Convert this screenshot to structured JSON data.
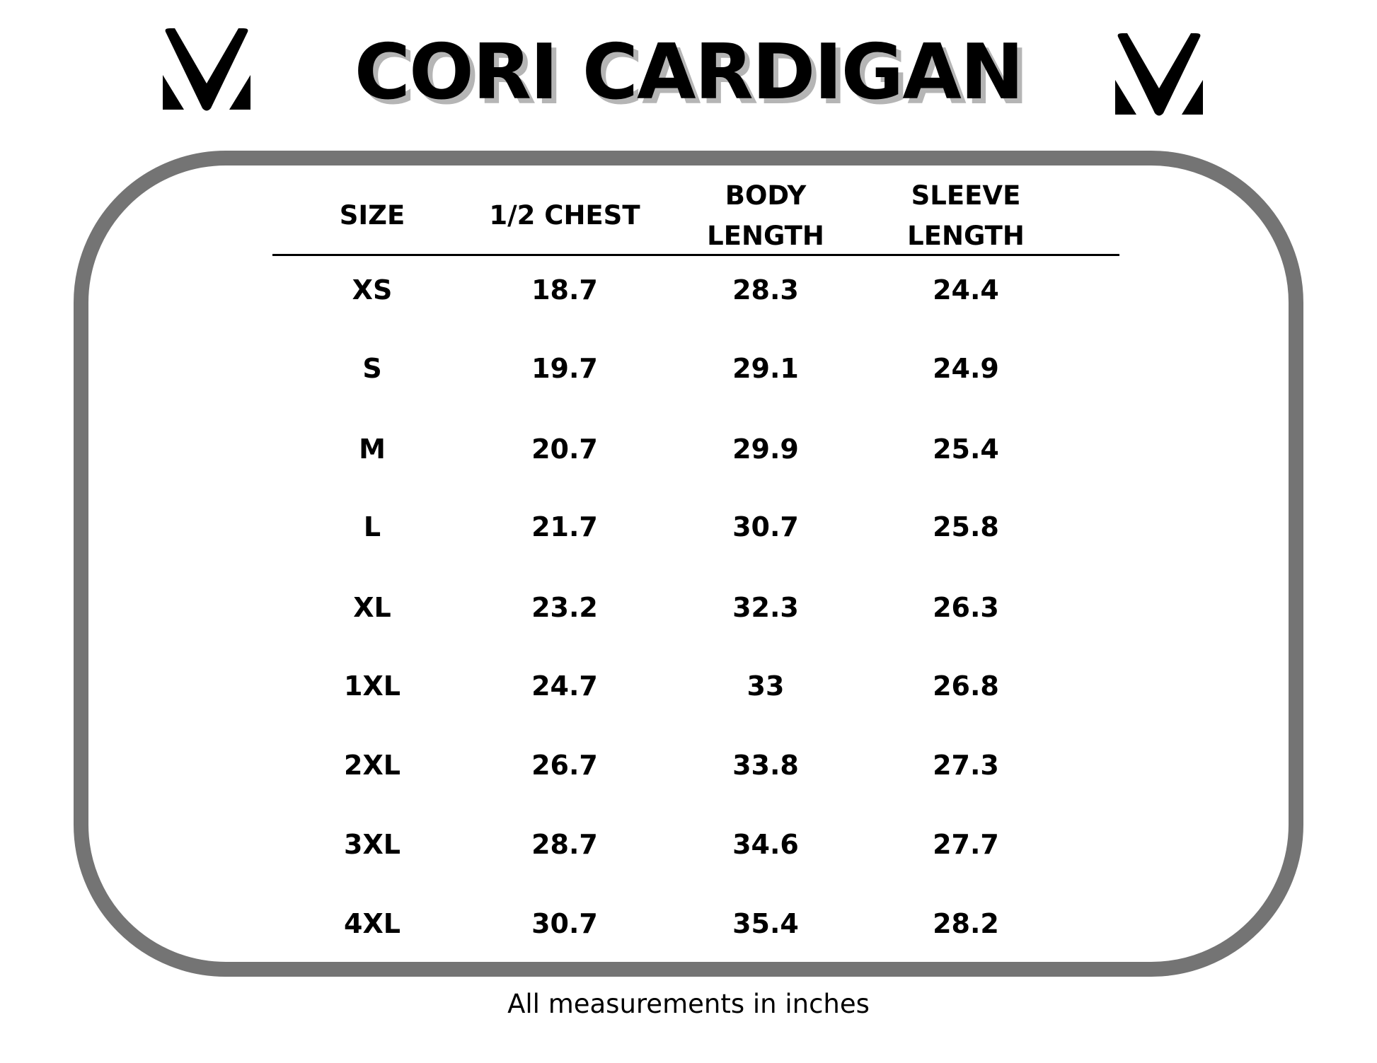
{
  "title": "CORI CARDIGAN",
  "logo": {
    "icon": "mv-logo-icon",
    "text": "MV"
  },
  "table": {
    "headers": [
      [
        "SIZE"
      ],
      [
        "1/2 CHEST"
      ],
      [
        "BODY",
        "LENGTH"
      ],
      [
        "SLEEVE",
        "LENGTH"
      ]
    ],
    "rows": [
      [
        "XS",
        "18.7",
        "28.3",
        "24.4"
      ],
      [
        "S",
        "19.7",
        "29.1",
        "24.9"
      ],
      [
        "M",
        "20.7",
        "29.9",
        "25.4"
      ],
      [
        "L",
        "21.7",
        "30.7",
        "25.8"
      ],
      [
        "XL",
        "23.2",
        "32.3",
        "26.3"
      ],
      [
        "1XL",
        "24.7",
        "33",
        "26.8"
      ],
      [
        "2XL",
        "26.7",
        "33.8",
        "27.3"
      ],
      [
        "3XL",
        "28.7",
        "34.6",
        "27.7"
      ],
      [
        "4XL",
        "30.7",
        "35.4",
        "28.2"
      ]
    ]
  },
  "footer": "All measurements in inches",
  "colors": {
    "border": "#747474",
    "title_shadow": "#b5b5b5",
    "text": "#000000"
  }
}
